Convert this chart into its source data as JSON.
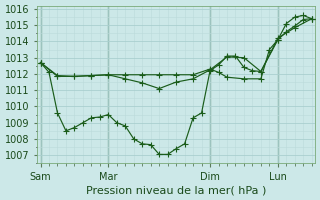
{
  "background_color": "#cce8e8",
  "grid_major_color": "#aacfcf",
  "grid_minor_color": "#bbdada",
  "line_color": "#1a5c1a",
  "ylim": [
    1006.5,
    1016.2
  ],
  "xlim": [
    -0.2,
    16.2
  ],
  "yticks": [
    1007,
    1008,
    1009,
    1010,
    1011,
    1012,
    1013,
    1014,
    1015,
    1016
  ],
  "xlabel": "Pression niveau de la mer( hPa )",
  "xlabel_fontsize": 8,
  "xtick_labels": [
    "Sam",
    "Mar",
    "Dim",
    "Lun"
  ],
  "xtick_positions": [
    0,
    4,
    10,
    14
  ],
  "vline_color": "#5a8a6a",
  "line1_x": [
    0,
    1,
    2,
    3,
    4,
    5,
    6,
    7,
    8,
    9,
    10,
    10.5,
    11,
    12,
    13,
    13.5,
    14,
    14.5,
    15,
    15.5,
    16
  ],
  "line1_y": [
    1012.7,
    1011.9,
    1011.85,
    1011.9,
    1011.95,
    1011.95,
    1011.95,
    1011.95,
    1011.95,
    1011.95,
    1012.3,
    1012.1,
    1011.8,
    1011.7,
    1011.7,
    1013.5,
    1014.1,
    1014.6,
    1014.95,
    1015.35,
    1015.4
  ],
  "line2_x": [
    0,
    0.5,
    1,
    1.5,
    2,
    2.5,
    3,
    3.5,
    4,
    4.5,
    5,
    5.5,
    6,
    6.5,
    7,
    7.5,
    8,
    8.5,
    9,
    9.5,
    10,
    10.5,
    11,
    11.5,
    12,
    12.5,
    13,
    14,
    14.5,
    15,
    15.5,
    16
  ],
  "line2_y": [
    1012.7,
    1012.1,
    1009.6,
    1008.5,
    1008.7,
    1009.0,
    1009.3,
    1009.35,
    1009.5,
    1009.0,
    1008.8,
    1008.0,
    1007.7,
    1007.65,
    1007.05,
    1007.05,
    1007.4,
    1007.7,
    1009.3,
    1009.6,
    1012.2,
    1012.55,
    1013.1,
    1013.1,
    1012.4,
    1012.2,
    1012.15,
    1014.1,
    1015.1,
    1015.5,
    1015.6,
    1015.4
  ],
  "line3_x": [
    0,
    1,
    2,
    3,
    4,
    5,
    6,
    7,
    8,
    9,
    10,
    11,
    12,
    13,
    14,
    15,
    16
  ],
  "line3_y": [
    1012.7,
    1011.85,
    1011.85,
    1011.9,
    1011.95,
    1011.7,
    1011.45,
    1011.1,
    1011.5,
    1011.7,
    1012.25,
    1013.05,
    1013.0,
    1012.15,
    1014.2,
    1014.85,
    1015.4
  ]
}
